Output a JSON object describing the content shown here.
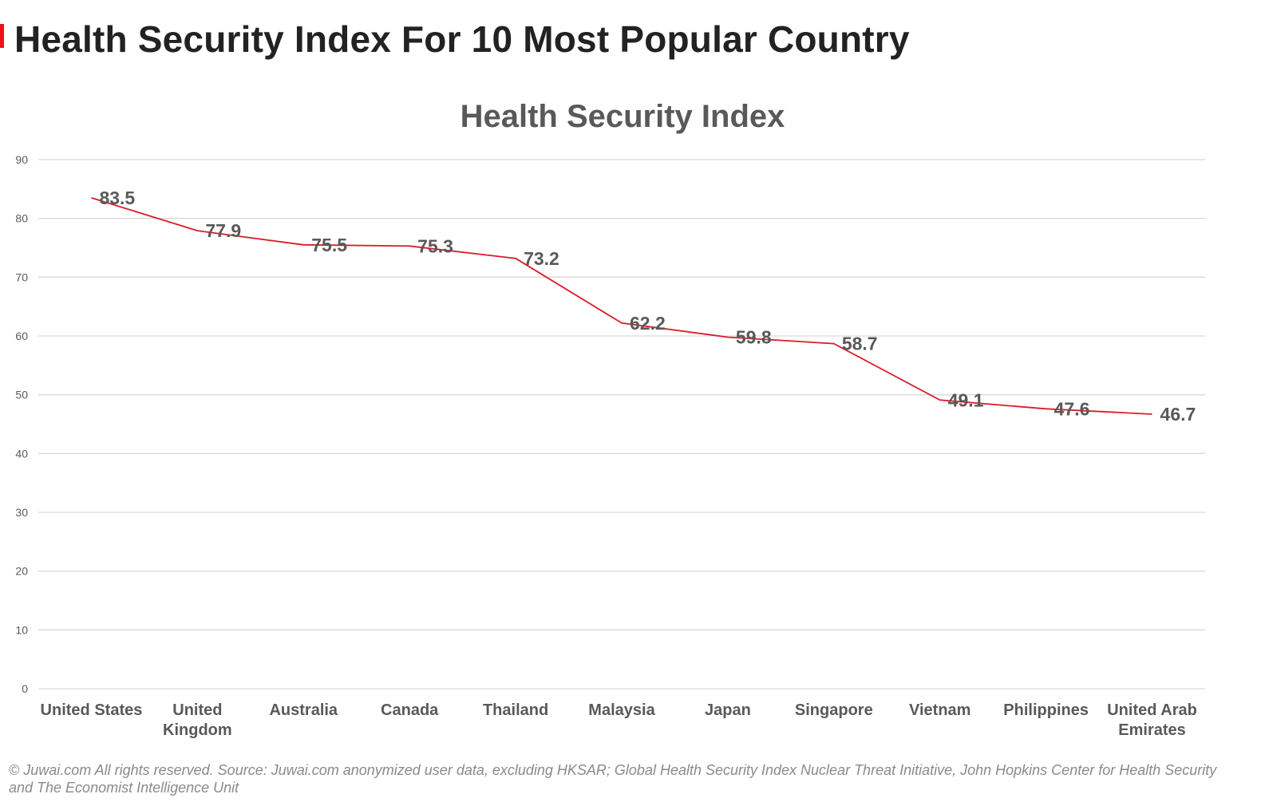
{
  "page": {
    "title": "Health Security Index For 10 Most Popular Country",
    "footer": "© Juwai.com All rights reserved. Source: Juwai.com anonymized user data, excluding HKSAR; Global Health Security Index Nuclear Threat Initiative, John Hopkins Center for Health Security and The Economist Intelligence Unit"
  },
  "colors": {
    "accent": "#e8141b",
    "line": "#d91c28",
    "grid": "#d9d9d9",
    "text": "#595959"
  },
  "chart_data": {
    "type": "line",
    "title": "Health Security Index",
    "xlabel": "",
    "ylabel": "",
    "ylim": [
      0,
      90
    ],
    "yticks": [
      0,
      10,
      20,
      30,
      40,
      50,
      60,
      70,
      80,
      90
    ],
    "grid": true,
    "categories": [
      [
        "United States"
      ],
      [
        "United",
        "Kingdom"
      ],
      [
        "Australia"
      ],
      [
        "Canada"
      ],
      [
        "Thailand"
      ],
      [
        "Malaysia"
      ],
      [
        "Japan"
      ],
      [
        "Singapore"
      ],
      [
        "Vietnam"
      ],
      [
        "Philippines"
      ],
      [
        "United Arab",
        "Emirates"
      ]
    ],
    "series": [
      {
        "values": [
          83.5,
          77.9,
          75.5,
          75.3,
          73.2,
          62.2,
          59.8,
          58.7,
          49.1,
          47.6,
          46.7
        ],
        "labels": [
          "83.5",
          "77.9",
          "75.5",
          "75.3",
          "73.2",
          "62.2",
          "59.8",
          "58.7",
          "49.1",
          "47.6",
          "46.7"
        ]
      }
    ]
  }
}
